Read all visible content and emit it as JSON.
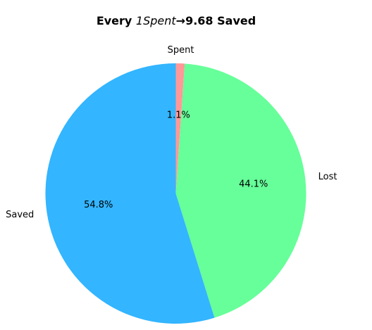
{
  "chart_data": {
    "type": "pie",
    "title": {
      "prefix": "Every ",
      "math_part": "1Spent",
      "arrow": "→",
      "suffix": "9.68 Saved"
    },
    "start_angle_deg": 90,
    "direction": "clockwise",
    "slices": [
      {
        "label": "Spent",
        "value": 1.1,
        "pct_label": "1.1%",
        "color": "#ff9999"
      },
      {
        "label": "Lost",
        "value": 44.1,
        "pct_label": "44.1%",
        "color": "#66ff99"
      },
      {
        "label": "Saved",
        "value": 54.8,
        "pct_label": "54.8%",
        "color": "#33b5ff"
      }
    ]
  }
}
